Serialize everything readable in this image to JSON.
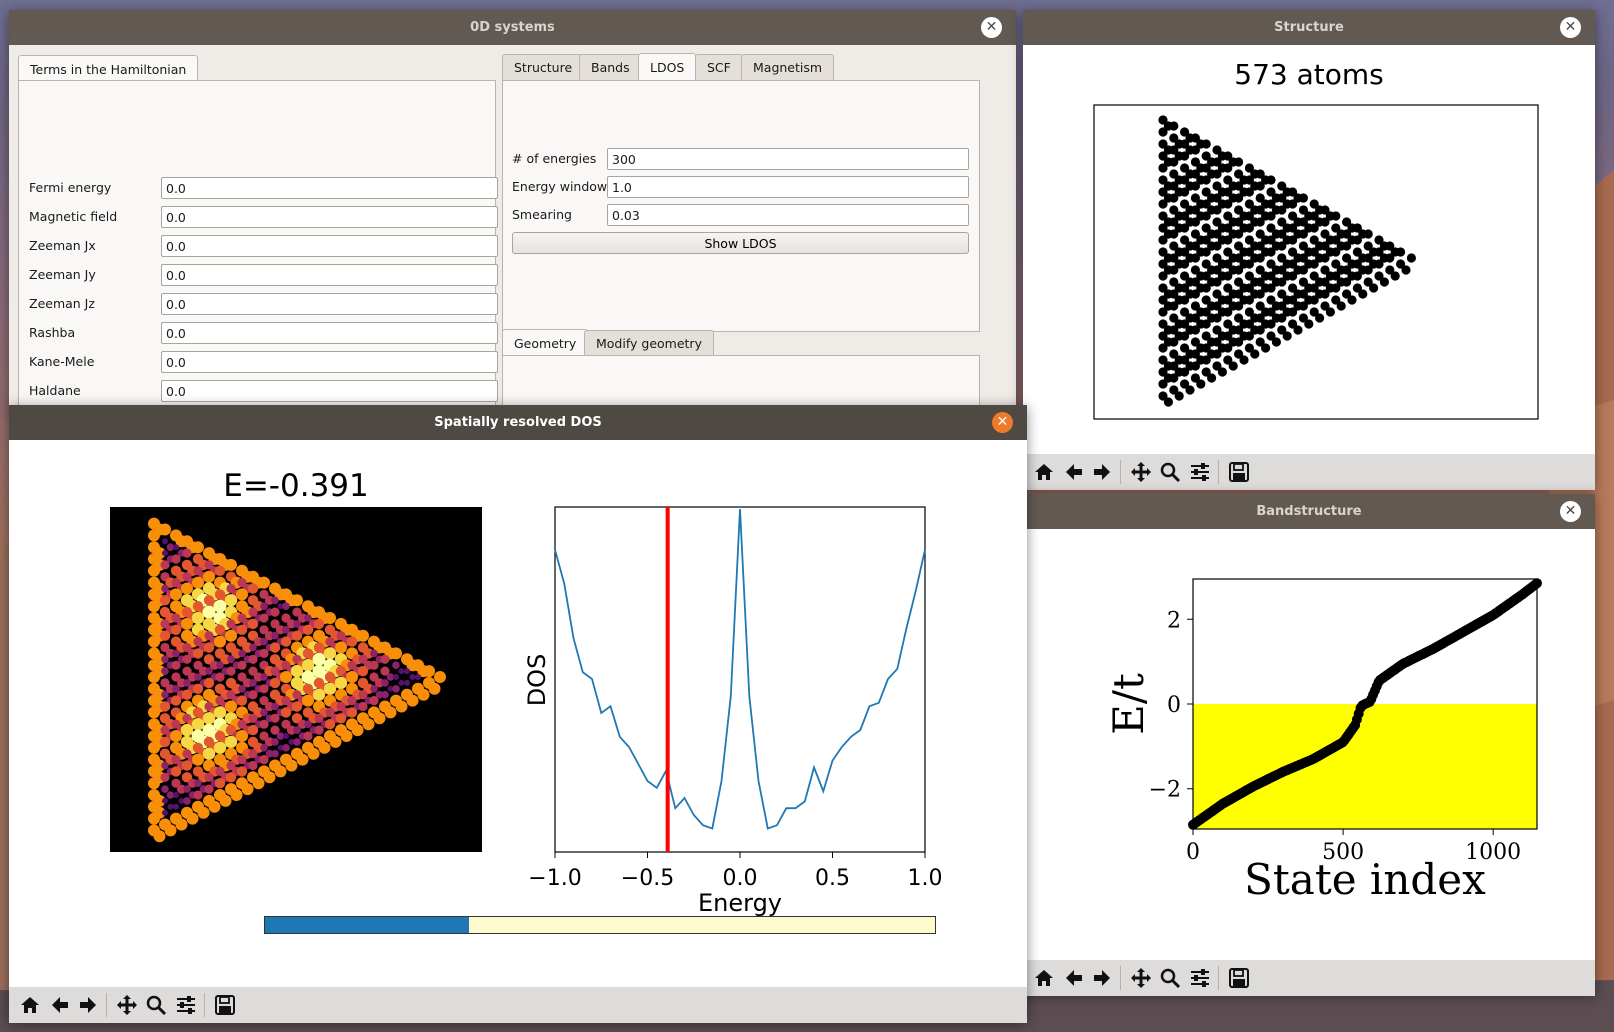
{
  "windows": {
    "main": {
      "title": "0D systems"
    },
    "structure": {
      "title": "Structure"
    },
    "bandstructure": {
      "title": "Bandstructure"
    },
    "ldos": {
      "title": "Spatially resolved DOS"
    }
  },
  "hamiltonian": {
    "tab_label": "Terms in the Hamiltonian",
    "fields": [
      {
        "label": "Fermi energy",
        "value": "0.0"
      },
      {
        "label": "Magnetic field",
        "value": "0.0"
      },
      {
        "label": "Zeeman Jx",
        "value": "0.0"
      },
      {
        "label": "Zeeman Jy",
        "value": "0.0"
      },
      {
        "label": "Zeeman Jz",
        "value": "0.0"
      },
      {
        "label": "Rashba",
        "value": "0.0"
      },
      {
        "label": "Kane-Mele",
        "value": "0.0"
      },
      {
        "label": "Haldane",
        "value": "0.0"
      }
    ]
  },
  "tabs": {
    "top": [
      "Structure",
      "Bands",
      "LDOS",
      "SCF",
      "Magnetism"
    ],
    "top_selected": "LDOS",
    "bottom": [
      "Geometry",
      "Modify geometry"
    ],
    "bottom_selected": "Geometry"
  },
  "ldos_form": {
    "fields": [
      {
        "label": "# of energies",
        "value": "300"
      },
      {
        "label": "Energy window",
        "value": "1.0"
      },
      {
        "label": "Smearing",
        "value": "0.03"
      }
    ],
    "button": "Show LDOS"
  },
  "structure_plot": {
    "title": "573 atoms"
  },
  "band_plot": {
    "ylabel": "E/t",
    "xlabel": "State index",
    "xticks": [
      "0",
      "500",
      "1000"
    ],
    "yticks": [
      "2",
      "0",
      "−2"
    ],
    "colors": {
      "filled": "#ffff00",
      "points": "#000000"
    }
  },
  "ldos_plot": {
    "map_title": "E=-0.391",
    "ylabel": "DOS",
    "xlabel": "Energy",
    "xticks": [
      "−1.0",
      "−0.5",
      "0.0",
      "0.5",
      "1.0"
    ],
    "colors": {
      "curve": "#1f77b4",
      "marker": "#ff0000",
      "progress": "#1f77b4",
      "progress_bg": "#fffacd"
    }
  },
  "chart_data": [
    {
      "type": "scatter",
      "title": "573 atoms",
      "points_count": 573,
      "shape": "triangular honeycomb flake"
    },
    {
      "type": "scatter",
      "title": "",
      "xlabel": "State index",
      "ylabel": "E/t",
      "xlim": [
        0,
        1146
      ],
      "ylim": [
        -2.95,
        2.95
      ],
      "x": [
        0,
        100,
        200,
        300,
        400,
        500,
        540,
        560,
        573,
        590,
        620,
        700,
        800,
        900,
        1000,
        1100,
        1146
      ],
      "y": [
        -2.85,
        -2.35,
        -1.95,
        -1.6,
        -1.3,
        -0.9,
        -0.5,
        -0.05,
        0.0,
        0.05,
        0.55,
        0.95,
        1.3,
        1.7,
        2.1,
        2.6,
        2.85
      ],
      "fill_below_zero": true
    },
    {
      "type": "line",
      "title": "E=-0.391",
      "xlabel": "Energy",
      "ylabel": "DOS",
      "xlim": [
        -1.0,
        1.0
      ],
      "x": [
        -1.0,
        -0.95,
        -0.9,
        -0.85,
        -0.8,
        -0.75,
        -0.7,
        -0.65,
        -0.6,
        -0.55,
        -0.5,
        -0.45,
        -0.4,
        -0.35,
        -0.3,
        -0.25,
        -0.2,
        -0.15,
        -0.1,
        -0.05,
        0.0,
        0.05,
        0.1,
        0.15,
        0.2,
        0.25,
        0.3,
        0.35,
        0.4,
        0.45,
        0.5,
        0.55,
        0.6,
        0.65,
        0.7,
        0.75,
        0.8,
        0.85,
        0.9,
        0.95,
        1.0
      ],
      "y": [
        0.88,
        0.78,
        0.62,
        0.52,
        0.5,
        0.4,
        0.42,
        0.33,
        0.3,
        0.25,
        0.2,
        0.18,
        0.23,
        0.12,
        0.15,
        0.1,
        0.07,
        0.06,
        0.2,
        0.45,
        1.0,
        0.45,
        0.2,
        0.06,
        0.07,
        0.12,
        0.12,
        0.14,
        0.24,
        0.17,
        0.26,
        0.3,
        0.33,
        0.35,
        0.42,
        0.43,
        0.5,
        0.53,
        0.65,
        0.76,
        0.88
      ],
      "marker_x": -0.391
    }
  ]
}
